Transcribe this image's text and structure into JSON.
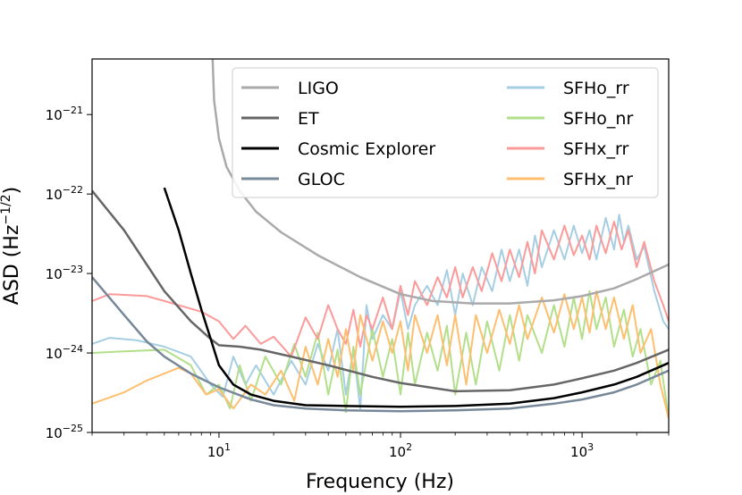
{
  "chart_data": {
    "type": "line",
    "xscale": "log",
    "yscale": "log",
    "xlabel": "Frequency (Hz)",
    "ylabel": "ASD (Hz",
    "ylabel_exp": "−1/2",
    "ylabel_close": ")",
    "xlim": [
      2,
      3000
    ],
    "ylim": [
      1e-25,
      5e-21
    ],
    "grid": false,
    "legend_position": "top-right",
    "x_ticks": [
      {
        "value": 10,
        "base": "10",
        "exp": "1"
      },
      {
        "value": 100,
        "base": "10",
        "exp": "2"
      },
      {
        "value": 1000,
        "base": "10",
        "exp": "3"
      }
    ],
    "y_ticks": [
      {
        "value": 1e-21,
        "base": "10",
        "exp": "−21"
      },
      {
        "value": 1e-22,
        "base": "10",
        "exp": "−22"
      },
      {
        "value": 1e-23,
        "base": "10",
        "exp": "−23"
      },
      {
        "value": 1e-24,
        "base": "10",
        "exp": "−24"
      },
      {
        "value": 1e-25,
        "base": "10",
        "exp": "−25"
      }
    ],
    "series": [
      {
        "name": "LIGO",
        "color": "#aaaaaa",
        "width": 2.5,
        "points": [
          [
            9.2,
            6e-21
          ],
          [
            9.4,
            1.5e-21
          ],
          [
            10,
            5e-22
          ],
          [
            11,
            2.2e-22
          ],
          [
            13,
            1.1e-22
          ],
          [
            16,
            6e-23
          ],
          [
            22,
            3.3e-23
          ],
          [
            35,
            1.7e-23
          ],
          [
            60,
            9e-24
          ],
          [
            100,
            5.5e-24
          ],
          [
            150,
            4.5e-24
          ],
          [
            250,
            4.2e-24
          ],
          [
            400,
            4.2e-24
          ],
          [
            700,
            4.6e-24
          ],
          [
            1000,
            5.2e-24
          ],
          [
            1500,
            6.5e-24
          ],
          [
            2000,
            8.5e-24
          ],
          [
            3000,
            1.3e-23
          ]
        ]
      },
      {
        "name": "ET",
        "color": "#666666",
        "width": 2.5,
        "points": [
          [
            2,
            1.1e-22
          ],
          [
            3,
            3.5e-23
          ],
          [
            4,
            1.3e-23
          ],
          [
            5,
            6e-24
          ],
          [
            7,
            2.5e-24
          ],
          [
            9,
            1.5e-24
          ],
          [
            10,
            1.25e-24
          ],
          [
            13,
            1.2e-24
          ],
          [
            17,
            1.1e-24
          ],
          [
            25,
            9e-25
          ],
          [
            40,
            7e-25
          ],
          [
            70,
            5e-25
          ],
          [
            100,
            4.2e-25
          ],
          [
            200,
            3.3e-25
          ],
          [
            400,
            3.4e-25
          ],
          [
            700,
            4e-25
          ],
          [
            1000,
            4.8e-25
          ],
          [
            1500,
            6e-25
          ],
          [
            2000,
            7.5e-25
          ],
          [
            3000,
            1.1e-24
          ]
        ]
      },
      {
        "name": "Cosmic Explorer",
        "color": "#000000",
        "width": 2.5,
        "points": [
          [
            5,
            1.2e-22
          ],
          [
            6,
            3.5e-23
          ],
          [
            7,
            1e-23
          ],
          [
            8,
            3.5e-24
          ],
          [
            9,
            1.5e-24
          ],
          [
            10,
            7e-25
          ],
          [
            12,
            4e-25
          ],
          [
            15,
            3e-25
          ],
          [
            20,
            2.5e-25
          ],
          [
            30,
            2.2e-25
          ],
          [
            50,
            2.15e-25
          ],
          [
            100,
            2.1e-25
          ],
          [
            200,
            2.15e-25
          ],
          [
            400,
            2.3e-25
          ],
          [
            700,
            2.7e-25
          ],
          [
            1000,
            3.2e-25
          ],
          [
            1500,
            4e-25
          ],
          [
            2000,
            5e-25
          ],
          [
            3000,
            7.5e-25
          ]
        ]
      },
      {
        "name": "GLOC",
        "color": "#778899",
        "width": 2.5,
        "points": [
          [
            2,
            9e-24
          ],
          [
            3,
            3e-24
          ],
          [
            4,
            1.4e-24
          ],
          [
            5,
            9e-25
          ],
          [
            7,
            5.5e-25
          ],
          [
            10,
            3.7e-25
          ],
          [
            15,
            2.6e-25
          ],
          [
            20,
            2.2e-25
          ],
          [
            30,
            2e-25
          ],
          [
            50,
            1.9e-25
          ],
          [
            100,
            1.85e-25
          ],
          [
            200,
            1.9e-25
          ],
          [
            400,
            2e-25
          ],
          [
            700,
            2.3e-25
          ],
          [
            1000,
            2.6e-25
          ],
          [
            1500,
            3.2e-25
          ],
          [
            2000,
            4e-25
          ],
          [
            3000,
            6e-25
          ]
        ]
      },
      {
        "name": "SFHo_rr",
        "color": "#a6cee3",
        "width": 2,
        "points": [
          [
            2,
            1.3e-24
          ],
          [
            2.5,
            1.55e-24
          ],
          [
            3.5,
            1.45e-24
          ],
          [
            5,
            1.2e-24
          ],
          [
            7,
            9e-25
          ],
          [
            9,
            4e-25
          ],
          [
            10.5,
            2.8e-25
          ],
          [
            12,
            9e-25
          ],
          [
            14,
            4e-25
          ],
          [
            16,
            7e-25
          ],
          [
            20,
            3e-25
          ],
          [
            25,
            8e-25
          ],
          [
            30,
            4e-25
          ],
          [
            35,
            1.3e-24
          ],
          [
            40,
            6e-25
          ],
          [
            45,
            2e-24
          ],
          [
            50,
            3e-25
          ],
          [
            55,
            1.1e-24
          ],
          [
            60,
            2e-25
          ],
          [
            65,
            4e-24
          ],
          [
            70,
            1.5e-24
          ],
          [
            80,
            3e-24
          ],
          [
            90,
            2e-24
          ],
          [
            100,
            6e-24
          ],
          [
            110,
            2e-24
          ],
          [
            120,
            4e-24
          ],
          [
            140,
            7e-24
          ],
          [
            160,
            4e-24
          ],
          [
            180,
            1.1e-23
          ],
          [
            200,
            3e-24
          ],
          [
            220,
            1e-23
          ],
          [
            250,
            4e-24
          ],
          [
            280,
            1.2e-23
          ],
          [
            320,
            6e-24
          ],
          [
            360,
            2e-23
          ],
          [
            400,
            8e-24
          ],
          [
            450,
            2e-23
          ],
          [
            500,
            7e-24
          ],
          [
            550,
            3e-23
          ],
          [
            600,
            1.2e-23
          ],
          [
            700,
            3.5e-23
          ],
          [
            800,
            1.5e-23
          ],
          [
            900,
            4e-23
          ],
          [
            1000,
            1.8e-23
          ],
          [
            1100,
            3.5e-23
          ],
          [
            1200,
            1.5e-23
          ],
          [
            1350,
            5e-23
          ],
          [
            1500,
            2e-23
          ],
          [
            1600,
            5.5e-23
          ],
          [
            1700,
            2.5e-23
          ],
          [
            1800,
            4e-23
          ],
          [
            2000,
            1.5e-23
          ],
          [
            2200,
            2.2e-23
          ],
          [
            2500,
            6e-24
          ],
          [
            2800,
            2.5e-24
          ],
          [
            3000,
            2e-24
          ]
        ]
      },
      {
        "name": "SFHo_nr",
        "color": "#b2df8a",
        "width": 2,
        "points": [
          [
            2,
            1e-24
          ],
          [
            3,
            1.05e-24
          ],
          [
            5,
            1.1e-24
          ],
          [
            7,
            7e-25
          ],
          [
            8.5,
            3e-25
          ],
          [
            10,
            4e-25
          ],
          [
            11.5,
            2e-25
          ],
          [
            13,
            7e-25
          ],
          [
            15,
            2.5e-25
          ],
          [
            18,
            9e-25
          ],
          [
            22,
            4e-25
          ],
          [
            26,
            1.3e-24
          ],
          [
            30,
            5e-25
          ],
          [
            35,
            1.8e-24
          ],
          [
            40,
            3e-25
          ],
          [
            45,
            1.1e-24
          ],
          [
            50,
            1.8e-25
          ],
          [
            55,
            1.2e-24
          ],
          [
            60,
            3e-25
          ],
          [
            70,
            2e-24
          ],
          [
            80,
            5e-25
          ],
          [
            90,
            1.5e-24
          ],
          [
            100,
            3e-25
          ],
          [
            110,
            1.8e-24
          ],
          [
            120,
            4e-25
          ],
          [
            140,
            1.8e-24
          ],
          [
            160,
            6e-25
          ],
          [
            180,
            2.2e-24
          ],
          [
            200,
            3e-25
          ],
          [
            230,
            1.8e-24
          ],
          [
            260,
            4e-25
          ],
          [
            300,
            2.5e-24
          ],
          [
            350,
            6e-25
          ],
          [
            400,
            3e-24
          ],
          [
            450,
            8e-25
          ],
          [
            500,
            3e-24
          ],
          [
            600,
            1e-24
          ],
          [
            700,
            4e-24
          ],
          [
            800,
            1.2e-24
          ],
          [
            900,
            5e-24
          ],
          [
            1000,
            1.5e-24
          ],
          [
            1100,
            6e-24
          ],
          [
            1200,
            2e-24
          ],
          [
            1350,
            5e-24
          ],
          [
            1500,
            1.2e-24
          ],
          [
            1700,
            3.5e-24
          ],
          [
            1900,
            9e-25
          ],
          [
            2100,
            2e-24
          ],
          [
            2400,
            4e-25
          ],
          [
            2700,
            8e-25
          ],
          [
            3000,
            1.5e-25
          ]
        ]
      },
      {
        "name": "SFHx_rr",
        "color": "#fb9a99",
        "width": 2,
        "points": [
          [
            2,
            4.5e-24
          ],
          [
            2.5,
            5.5e-24
          ],
          [
            4,
            5.2e-24
          ],
          [
            5,
            4.5e-24
          ],
          [
            8,
            3.3e-24
          ],
          [
            10,
            2.5e-24
          ],
          [
            12,
            1.5e-24
          ],
          [
            14,
            2.2e-24
          ],
          [
            17,
            1.3e-24
          ],
          [
            20,
            1.6e-24
          ],
          [
            25,
            9e-25
          ],
          [
            30,
            2.8e-24
          ],
          [
            35,
            1.5e-24
          ],
          [
            40,
            4e-24
          ],
          [
            45,
            2e-24
          ],
          [
            50,
            1.3e-24
          ],
          [
            55,
            3.5e-24
          ],
          [
            60,
            1.2e-24
          ],
          [
            65,
            3e-24
          ],
          [
            70,
            2e-24
          ],
          [
            80,
            5e-24
          ],
          [
            90,
            2e-24
          ],
          [
            100,
            7e-24
          ],
          [
            110,
            3e-24
          ],
          [
            120,
            8e-24
          ],
          [
            140,
            4e-24
          ],
          [
            160,
            9e-24
          ],
          [
            180,
            5e-24
          ],
          [
            200,
            1.2e-23
          ],
          [
            220,
            5e-24
          ],
          [
            250,
            1.2e-23
          ],
          [
            280,
            6e-24
          ],
          [
            320,
            1.8e-23
          ],
          [
            360,
            8e-24
          ],
          [
            400,
            2e-23
          ],
          [
            450,
            9e-24
          ],
          [
            500,
            2.5e-23
          ],
          [
            550,
            1e-23
          ],
          [
            600,
            3.5e-23
          ],
          [
            700,
            1.5e-23
          ],
          [
            800,
            4e-23
          ],
          [
            900,
            1.7e-23
          ],
          [
            1000,
            3e-23
          ],
          [
            1100,
            1.5e-23
          ],
          [
            1200,
            4e-23
          ],
          [
            1350,
            1.8e-23
          ],
          [
            1500,
            4.5e-23
          ],
          [
            1650,
            2e-23
          ],
          [
            1800,
            3.5e-23
          ],
          [
            2000,
            1.2e-23
          ],
          [
            2200,
            2.5e-23
          ],
          [
            2500,
            8e-24
          ],
          [
            2800,
            4e-24
          ],
          [
            3000,
            2.5e-24
          ]
        ]
      },
      {
        "name": "SFHx_nr",
        "color": "#fdbf6f",
        "width": 2,
        "points": [
          [
            2,
            2.3e-25
          ],
          [
            3,
            3.2e-25
          ],
          [
            4,
            4.5e-25
          ],
          [
            5,
            5.5e-25
          ],
          [
            6,
            6.5e-25
          ],
          [
            7,
            5.5e-25
          ],
          [
            8.5,
            3e-25
          ],
          [
            10,
            3.5e-25
          ],
          [
            12,
            2e-25
          ],
          [
            15,
            4e-25
          ],
          [
            18,
            3e-25
          ],
          [
            22,
            6e-25
          ],
          [
            26,
            2.5e-25
          ],
          [
            30,
            1.2e-24
          ],
          [
            35,
            4e-25
          ],
          [
            40,
            1.5e-24
          ],
          [
            45,
            5e-25
          ],
          [
            50,
            2e-24
          ],
          [
            55,
            6e-25
          ],
          [
            60,
            3e-24
          ],
          [
            70,
            8e-25
          ],
          [
            80,
            2.5e-24
          ],
          [
            90,
            1e-24
          ],
          [
            100,
            2.5e-24
          ],
          [
            110,
            6e-25
          ],
          [
            120,
            3e-24
          ],
          [
            140,
            1e-24
          ],
          [
            160,
            3e-24
          ],
          [
            180,
            7e-25
          ],
          [
            200,
            3e-24
          ],
          [
            230,
            4e-25
          ],
          [
            260,
            3e-24
          ],
          [
            300,
            1e-24
          ],
          [
            350,
            3.5e-24
          ],
          [
            400,
            1.3e-24
          ],
          [
            450,
            4e-24
          ],
          [
            500,
            1.5e-24
          ],
          [
            600,
            5e-24
          ],
          [
            700,
            1.8e-24
          ],
          [
            800,
            5.5e-24
          ],
          [
            900,
            2e-24
          ],
          [
            1000,
            5e-24
          ],
          [
            1100,
            1.8e-24
          ],
          [
            1200,
            6e-24
          ],
          [
            1350,
            2e-24
          ],
          [
            1500,
            5e-24
          ],
          [
            1700,
            1.5e-24
          ],
          [
            1900,
            4e-24
          ],
          [
            2100,
            1e-24
          ],
          [
            2400,
            2e-24
          ],
          [
            2700,
            4e-25
          ],
          [
            3000,
            1.5e-25
          ]
        ]
      }
    ]
  }
}
